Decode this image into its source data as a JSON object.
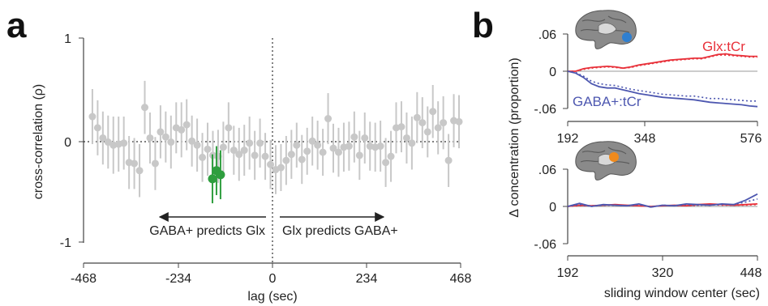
{
  "panel_labels": {
    "a": "a",
    "b": "b"
  },
  "chart_data": [
    {
      "id": "a",
      "type": "scatter",
      "title": "",
      "xlabel": "lag (sec)",
      "ylabel": "cross-correlation (ρ)",
      "xlim": [
        -468,
        468
      ],
      "ylim": [
        -1,
        1
      ],
      "xticks": [
        "-468",
        "-234",
        "0",
        "234",
        "468"
      ],
      "yticks": [
        "1",
        "0",
        "-1"
      ],
      "grid": false,
      "annotations": {
        "left": "GABA+ predicts Glx",
        "right": "Glx predicts GABA+"
      },
      "colors": {
        "points": "#c8c8c8",
        "significant": "#2e9e3e",
        "zero_lines": "#333333"
      },
      "series": [
        {
          "x": [
            -446,
            -433,
            -420,
            -407,
            -394,
            -381,
            -368,
            -355,
            -342,
            -329,
            -316,
            -303,
            -290,
            -277,
            -264,
            -251,
            -238,
            -225,
            -212,
            -199,
            -186,
            -173,
            -160,
            -147,
            -134,
            -121,
            -108,
            -95,
            -82,
            -69,
            -56,
            -43,
            -30,
            -17,
            -4,
            9,
            22,
            35,
            48,
            61,
            74,
            87,
            100,
            113,
            126,
            139,
            152,
            165,
            178,
            191,
            204,
            217,
            230,
            243,
            256,
            269,
            282,
            295,
            308,
            321,
            334,
            347,
            360,
            373,
            386,
            399,
            412,
            425,
            438,
            451,
            464
          ],
          "y": [
            0.23,
            0.12,
            0.02,
            -0.02,
            -0.05,
            -0.04,
            -0.03,
            -0.22,
            -0.23,
            -0.3,
            0.32,
            0.02,
            -0.23,
            0.08,
            0.03,
            -0.02,
            0.12,
            0.1,
            0.15,
            -0.01,
            -0.05,
            -0.17,
            -0.09,
            -0.15,
            -0.16,
            -0.07,
            0.12,
            -0.1,
            -0.14,
            -0.1,
            -0.03,
            -0.15,
            -0.03,
            -0.16,
            -0.24,
            -0.29,
            -0.27,
            -0.2,
            -0.14,
            -0.05,
            -0.19,
            -0.11,
            -0.01,
            -0.05,
            -0.12,
            0.21,
            -0.08,
            -0.12,
            -0.07,
            -0.06,
            0.03,
            -0.15,
            0.02,
            -0.06,
            -0.07,
            -0.06,
            -0.22,
            -0.16,
            0.12,
            0.13,
            0.02,
            -0.03,
            0.22,
            0.17,
            0.08,
            0.28,
            0.12,
            0.17,
            -0.2,
            0.19,
            0.18
          ],
          "err": [
            0.27,
            0.27,
            0.26,
            0.26,
            0.28,
            0.27,
            0.26,
            0.26,
            0.25,
            0.26,
            0.26,
            0.25,
            0.26,
            0.26,
            0.25,
            0.26,
            0.25,
            0.27,
            0.25,
            0.25,
            0.26,
            0.24,
            0.26,
            0.24,
            0.26,
            0.25,
            0.25,
            0.24,
            0.26,
            0.25,
            0.26,
            0.24,
            0.24,
            0.23,
            0.24,
            0.24,
            0.23,
            0.24,
            0.24,
            0.22,
            0.24,
            0.23,
            0.24,
            0.24,
            0.23,
            0.25,
            0.24,
            0.24,
            0.24,
            0.24,
            0.25,
            0.24,
            0.25,
            0.24,
            0.24,
            0.25,
            0.24,
            0.25,
            0.25,
            0.25,
            0.25,
            0.26,
            0.25,
            0.25,
            0.25,
            0.26,
            0.26,
            0.26,
            0.26,
            0.26,
            0.26
          ]
        },
        {
          "x": [
            -148,
            -138,
            -128
          ],
          "y": [
            -0.38,
            -0.3,
            -0.34
          ],
          "err": [
            0.24,
            0.24,
            0.24
          ],
          "significant": true
        }
      ]
    },
    {
      "id": "b-top",
      "type": "line",
      "title": "",
      "ylabel": "Δ concentration (proportion)",
      "xlim": [
        192,
        576
      ],
      "ylim": [
        -0.06,
        0.06
      ],
      "xticks": [
        "192",
        "348",
        "576"
      ],
      "yticks": [
        ".06",
        "0",
        "-.06"
      ],
      "icon": "brain-region-blue",
      "x": [
        192,
        208,
        224,
        240,
        256,
        272,
        288,
        304,
        320,
        336,
        352,
        368,
        384,
        400,
        416,
        432,
        448,
        464,
        480,
        496,
        512,
        528,
        544,
        560,
        576
      ],
      "series": [
        {
          "name": "Glx:tCr",
          "color": "#e8313a",
          "style": "solid",
          "values": [
            0.0,
            0.0,
            0.004,
            0.006,
            0.007,
            0.008,
            0.007,
            0.005,
            0.007,
            0.01,
            0.012,
            0.014,
            0.016,
            0.018,
            0.019,
            0.02,
            0.021,
            0.021,
            0.024,
            0.027,
            0.028,
            0.026,
            0.025,
            0.024,
            0.024
          ]
        },
        {
          "name": "Glx:tCr",
          "color": "#e8313a",
          "style": "dotted",
          "values": [
            0.0,
            0.0,
            0.003,
            0.005,
            0.006,
            0.007,
            0.006,
            0.005,
            0.006,
            0.009,
            0.011,
            0.013,
            0.015,
            0.017,
            0.018,
            0.019,
            0.02,
            0.02,
            0.023,
            0.026,
            0.026,
            0.025,
            0.024,
            0.023,
            0.023
          ]
        },
        {
          "name": "GABA+:tCr",
          "color": "#4d57b0",
          "style": "solid",
          "values": [
            0.0,
            -0.003,
            -0.01,
            -0.02,
            -0.025,
            -0.027,
            -0.027,
            -0.03,
            -0.033,
            -0.036,
            -0.038,
            -0.04,
            -0.042,
            -0.043,
            -0.044,
            -0.045,
            -0.046,
            -0.048,
            -0.05,
            -0.051,
            -0.052,
            -0.053,
            -0.054,
            -0.056,
            -0.057
          ]
        },
        {
          "name": "GABA+:tCr",
          "color": "#4d57b0",
          "style": "dotted",
          "values": [
            0.0,
            -0.002,
            -0.008,
            -0.016,
            -0.02,
            -0.022,
            -0.023,
            -0.026,
            -0.029,
            -0.031,
            -0.033,
            -0.035,
            -0.037,
            -0.038,
            -0.039,
            -0.04,
            -0.04,
            -0.042,
            -0.044,
            -0.044,
            -0.045,
            -0.046,
            -0.047,
            -0.048,
            -0.048
          ]
        }
      ]
    },
    {
      "id": "b-bottom",
      "type": "line",
      "title": "",
      "xlabel": "sliding window center (sec)",
      "xlim": [
        192,
        448
      ],
      "ylim": [
        -0.06,
        0.06
      ],
      "xticks": [
        "192",
        "320",
        "448"
      ],
      "yticks": [
        ".06",
        "0",
        "-.06"
      ],
      "icon": "brain-region-orange",
      "x": [
        192,
        208,
        224,
        240,
        256,
        272,
        288,
        304,
        320,
        336,
        352,
        368,
        384,
        400,
        416,
        432,
        448
      ],
      "series": [
        {
          "name": "Glx:tCr",
          "color": "#e8313a",
          "style": "solid",
          "values": [
            0.0,
            0.002,
            0.001,
            0.002,
            0.003,
            0.002,
            0.001,
            0.0,
            0.001,
            0.002,
            0.001,
            0.003,
            0.004,
            0.003,
            0.002,
            0.003,
            0.004
          ]
        },
        {
          "name": "Glx:tCr",
          "color": "#e8313a",
          "style": "dotted",
          "values": [
            0.0,
            0.001,
            0.001,
            0.002,
            0.002,
            0.001,
            0.001,
            0.0,
            0.001,
            0.001,
            0.001,
            0.002,
            0.003,
            0.002,
            0.002,
            0.002,
            0.003
          ]
        },
        {
          "name": "GABA+:tCr",
          "color": "#4d57b0",
          "style": "solid",
          "values": [
            0.0,
            0.005,
            0.0,
            0.003,
            0.002,
            0.001,
            0.004,
            -0.001,
            0.002,
            0.001,
            0.004,
            0.003,
            0.002,
            0.004,
            0.003,
            0.01,
            0.02
          ]
        },
        {
          "name": "GABA+:tCr",
          "color": "#4d57b0",
          "style": "dotted",
          "values": [
            0.0,
            0.003,
            0.0,
            0.002,
            0.002,
            0.001,
            0.003,
            -0.001,
            0.002,
            0.001,
            0.003,
            0.002,
            0.002,
            0.003,
            0.003,
            0.007,
            0.012
          ]
        }
      ]
    }
  ]
}
